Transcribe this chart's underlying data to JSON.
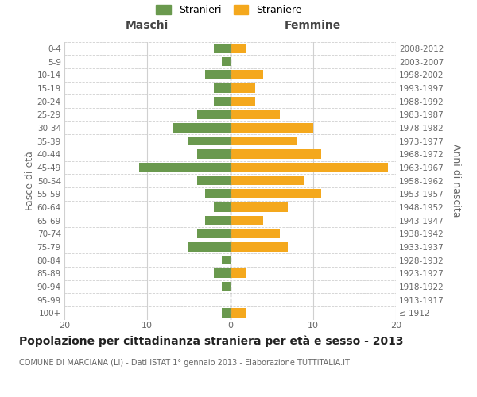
{
  "age_groups": [
    "100+",
    "95-99",
    "90-94",
    "85-89",
    "80-84",
    "75-79",
    "70-74",
    "65-69",
    "60-64",
    "55-59",
    "50-54",
    "45-49",
    "40-44",
    "35-39",
    "30-34",
    "25-29",
    "20-24",
    "15-19",
    "10-14",
    "5-9",
    "0-4"
  ],
  "birth_years": [
    "≤ 1912",
    "1913-1917",
    "1918-1922",
    "1923-1927",
    "1928-1932",
    "1933-1937",
    "1938-1942",
    "1943-1947",
    "1948-1952",
    "1953-1957",
    "1958-1962",
    "1963-1967",
    "1968-1972",
    "1973-1977",
    "1978-1982",
    "1983-1987",
    "1988-1992",
    "1993-1997",
    "1998-2002",
    "2003-2007",
    "2008-2012"
  ],
  "maschi": [
    1,
    0,
    1,
    2,
    1,
    5,
    4,
    3,
    2,
    3,
    4,
    11,
    4,
    5,
    7,
    4,
    2,
    2,
    3,
    1,
    2
  ],
  "femmine": [
    2,
    0,
    0,
    2,
    0,
    7,
    6,
    4,
    7,
    11,
    9,
    19,
    11,
    8,
    10,
    6,
    3,
    3,
    4,
    0,
    2
  ],
  "maschi_color": "#6a994e",
  "femmine_color": "#f4a81d",
  "title": "Popolazione per cittadinanza straniera per età e sesso - 2013",
  "subtitle": "COMUNE DI MARCIANA (LI) - Dati ISTAT 1° gennaio 2013 - Elaborazione TUTTITALIA.IT",
  "xlabel_left": "Maschi",
  "xlabel_right": "Femmine",
  "ylabel": "Fasce di età",
  "ylabel_right": "Anni di nascita",
  "legend_stranieri": "Stranieri",
  "legend_straniere": "Straniere",
  "xlim": 20,
  "background_color": "#ffffff",
  "grid_color": "#d0d0d0",
  "bar_height": 0.7
}
